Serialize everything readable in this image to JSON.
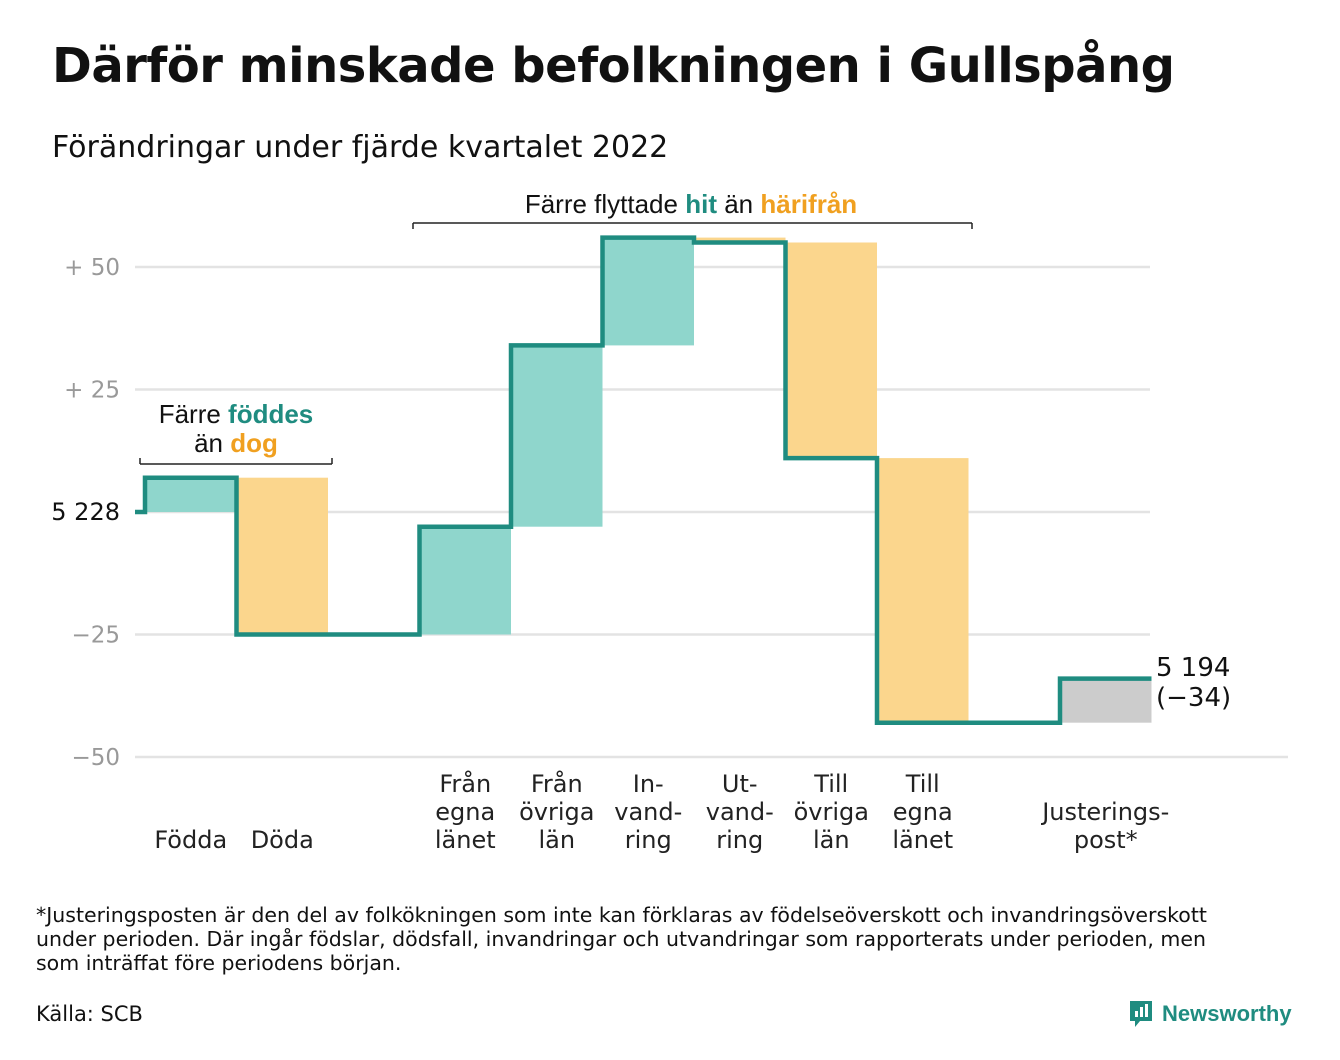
{
  "title": "Därför minskade befolkningen i Gullspång",
  "subtitle": "Förändringar under fjärde kvartalet 2022",
  "footnote": [
    "*Justeringsposten är den del av folkökningen som inte kan förklaras av födelseöverskott och invandringsöverskott",
    "under perioden. Där ingår födslar, dödsfall, invandringar och utvandringar som rapporterats under perioden, men",
    "som inträffat före periodens början."
  ],
  "source": "Källa: SCB",
  "brand": "Newsworthy",
  "colors": {
    "line": "#1f8c80",
    "inflow": "#8fd6cc",
    "outflow": "#fbd68d",
    "adjustment": "#cccccc",
    "accent_out": "#f0a020",
    "grid": "#e3e3e3"
  },
  "chart_data": {
    "type": "waterfall",
    "baseline": 5228,
    "end_value": 5194,
    "end_label": "5 194",
    "end_change_label": "(−34)",
    "start_label": "5 228",
    "y_ticks": [
      {
        "value": 50,
        "label": "+ 50"
      },
      {
        "value": 25,
        "label": "+ 25"
      },
      {
        "value": 0,
        "label": ""
      },
      {
        "value": -25,
        "label": "−25"
      },
      {
        "value": -50,
        "label": "−50"
      }
    ],
    "ylim": [
      -50,
      56
    ],
    "steps": [
      {
        "key": "fodda",
        "label": [
          "Födda"
        ],
        "change": 7,
        "kind": "inflow"
      },
      {
        "key": "doda",
        "label": [
          "Döda"
        ],
        "change": -32,
        "kind": "outflow"
      },
      {
        "key": "gap",
        "label": [],
        "change": 0,
        "kind": "gap"
      },
      {
        "key": "fran-egna",
        "label": [
          "Från",
          "egna",
          "länet"
        ],
        "change": 22,
        "kind": "inflow"
      },
      {
        "key": "fran-ovriga",
        "label": [
          "Från",
          "övriga",
          "län"
        ],
        "change": 37,
        "kind": "inflow"
      },
      {
        "key": "invandring",
        "label": [
          "In-",
          "vand-",
          "ring"
        ],
        "change": 22,
        "kind": "inflow"
      },
      {
        "key": "utvandring",
        "label": [
          "Ut-",
          "vand-",
          "ring"
        ],
        "change": -1,
        "kind": "outflow"
      },
      {
        "key": "till-ovriga",
        "label": [
          "Till",
          "övriga",
          "län"
        ],
        "change": -44,
        "kind": "outflow"
      },
      {
        "key": "till-egna",
        "label": [
          "Till",
          "egna",
          "länet"
        ],
        "change": -54,
        "kind": "outflow"
      },
      {
        "key": "gap2",
        "label": [],
        "change": 0,
        "kind": "gap"
      },
      {
        "key": "justering",
        "label": [
          "Justerings-",
          "post*"
        ],
        "change": 9,
        "kind": "adjustment"
      }
    ],
    "annotations": [
      {
        "key": "births-deaths",
        "parts": [
          [
            "Färre ",
            "födda-bold"
          ],
          [
            "föddes",
            "in"
          ],
          [
            "än ",
            "plain"
          ],
          [
            "dog",
            "out"
          ]
        ]
      },
      {
        "key": "migration",
        "parts": [
          [
            "Färre flyttade ",
            "plain"
          ],
          [
            "hit",
            "in"
          ],
          [
            " än ",
            "plain"
          ],
          [
            "härifrån",
            "out"
          ]
        ]
      }
    ]
  }
}
